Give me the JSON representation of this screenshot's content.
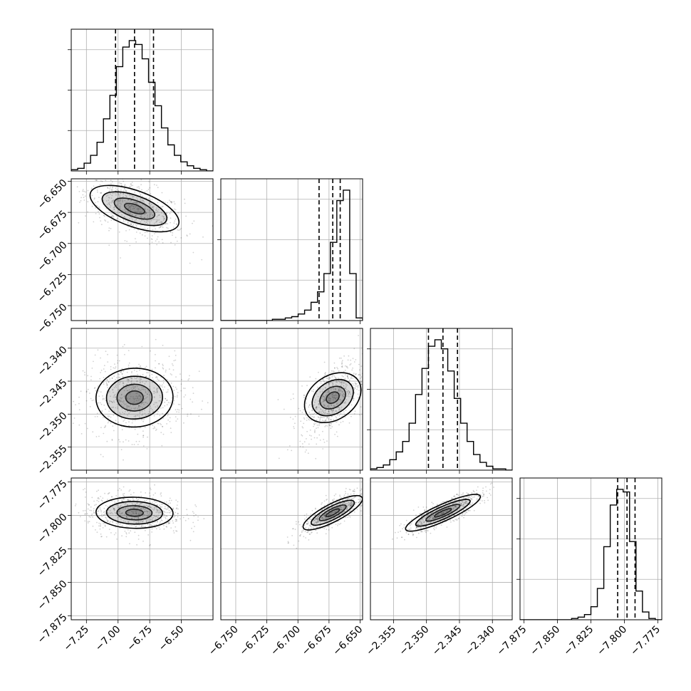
{
  "chart_data": {
    "type": "corner",
    "parameters": [
      {
        "ticks": [
          -7.25,
          -7.0,
          -6.75,
          -6.5
        ],
        "tick_labels": [
          "−7.25",
          "−7.00",
          "−6.75",
          "−6.50"
        ],
        "range": [
          -7.37,
          -6.25
        ],
        "mean": -6.87,
        "std": 0.15,
        "quantiles": [
          -7.02,
          -6.87,
          -6.72
        ]
      },
      {
        "ticks": [
          -6.75,
          -6.725,
          -6.7,
          -6.675,
          -6.65
        ],
        "tick_labels": [
          "−6.750",
          "−6.725",
          "−6.700",
          "−6.675",
          "−6.650"
        ],
        "range": [
          -6.762,
          -6.648
        ],
        "mean": -6.672,
        "std": 0.01,
        "quantiles": [
          -6.683,
          -6.672,
          -6.666
        ]
      },
      {
        "ticks": [
          -2.355,
          -2.35,
          -2.345,
          -2.34
        ],
        "tick_labels": [
          "−2.355",
          "−2.350",
          "−2.345",
          "−2.340"
        ],
        "range": [
          -2.3585,
          -2.337
        ],
        "mean": -2.3475,
        "std": 0.0023,
        "quantiles": [
          -2.3497,
          -2.3475,
          -2.3453
        ]
      },
      {
        "ticks": [
          -7.875,
          -7.85,
          -7.825,
          -7.8,
          -7.775
        ],
        "tick_labels": [
          "−7.875",
          "−7.850",
          "−7.825",
          "−7.800",
          "−7.775"
        ],
        "range": [
          -7.878,
          -7.772
        ],
        "mean": -7.798,
        "std": 0.006,
        "quantiles": [
          -7.805,
          -7.798,
          -7.792
        ]
      }
    ],
    "histograms": [
      [
        1,
        2,
        6,
        12,
        22,
        40,
        58,
        80,
        95,
        100,
        97,
        86,
        68,
        50,
        33,
        20,
        12,
        7,
        4,
        2,
        1,
        0
      ],
      [
        0,
        0,
        0,
        0,
        0,
        0,
        0,
        0,
        1,
        1,
        2,
        3,
        5,
        8,
        14,
        22,
        36,
        60,
        92,
        100,
        36,
        2
      ],
      [
        1,
        2,
        4,
        8,
        14,
        22,
        36,
        58,
        78,
        95,
        100,
        93,
        76,
        55,
        36,
        22,
        12,
        6,
        3,
        1,
        1,
        0
      ],
      [
        0,
        0,
        0,
        0,
        0,
        0,
        0,
        0,
        1,
        2,
        4,
        10,
        24,
        56,
        88,
        100,
        98,
        60,
        22,
        6,
        1,
        0
      ]
    ],
    "correlations": [
      [
        1,
        -0.55,
        0.05,
        -0.05
      ],
      [
        -0.55,
        1,
        0.55,
        0.8
      ],
      [
        0.05,
        0.55,
        1,
        0.85
      ],
      [
        -0.05,
        0.8,
        0.85,
        1
      ]
    ],
    "grid": true,
    "quantile_lines": "dashed",
    "color": "#000000"
  }
}
